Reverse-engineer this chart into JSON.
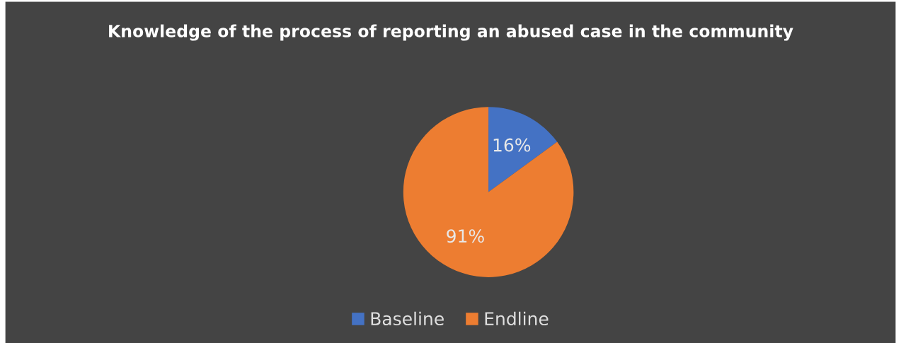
{
  "chart_data": {
    "type": "pie",
    "title": "Knowledge of the process of reporting an abused case in the community",
    "categories": [
      "Baseline",
      "Endline"
    ],
    "values": [
      16,
      91
    ],
    "colors": [
      "#4472c4",
      "#ed7d31"
    ],
    "value_labels": [
      "16%",
      "91%"
    ],
    "legend": "bottom"
  }
}
